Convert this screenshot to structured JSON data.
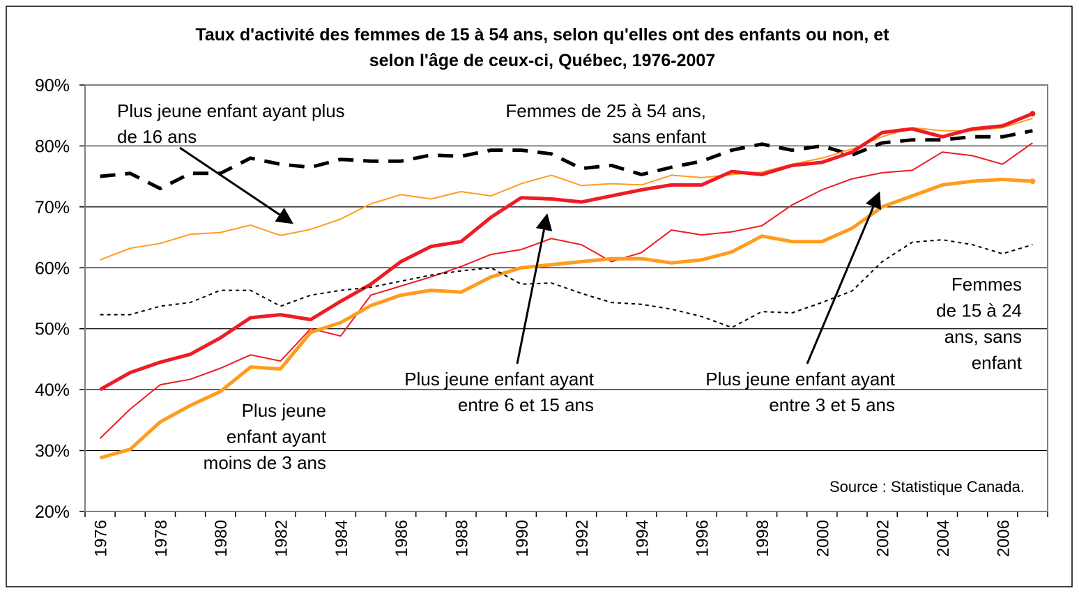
{
  "chart_data": {
    "type": "line",
    "title": [
      "Taux d'activité des femmes de 15 à 54 ans, selon qu'elles ont des enfants ou non, et",
      "selon l'âge de ceux-ci, Québec, 1976-2007"
    ],
    "categories": [
      "1976",
      null,
      "1978",
      null,
      "1980",
      null,
      "1982",
      null,
      "1984",
      null,
      "1986",
      null,
      "1988",
      null,
      "1990",
      null,
      "1992",
      null,
      "1994",
      null,
      "1996",
      null,
      "1998",
      null,
      "2000",
      null,
      "2002",
      null,
      "2004",
      null,
      "2006",
      null
    ],
    "ylim": [
      20,
      90
    ],
    "yticks": [
      {
        "value": 20,
        "label": "20%"
      },
      {
        "value": 30,
        "label": "30%"
      },
      {
        "value": 40,
        "label": "40%"
      },
      {
        "value": 50,
        "label": "50%"
      },
      {
        "value": 60,
        "label": "60%"
      },
      {
        "value": 70,
        "label": "70%"
      },
      {
        "value": 80,
        "label": "80%"
      },
      {
        "value": 90,
        "label": "90%"
      }
    ],
    "grid": true,
    "series": [
      {
        "color": "#000000",
        "line_width": "thick",
        "dash": "dashed",
        "values": [
          75,
          75.5,
          73,
          75.5,
          75.5,
          78,
          77,
          76.5,
          77.8,
          77.5,
          77.5,
          78.5,
          78.3,
          79.3,
          79.3,
          78.7,
          76.3,
          76.8,
          75.3,
          76.5,
          77.5,
          79.3,
          80.3,
          79.3,
          80,
          78.5,
          80.5,
          81,
          81,
          81.5,
          81.5,
          82.5
        ]
      },
      {
        "color": "#ff9c1e",
        "line_width": "thin",
        "dash": "solid",
        "values": [
          61.3,
          63.2,
          64,
          65.5,
          65.8,
          67,
          65.3,
          66.3,
          68,
          70.5,
          72,
          71.3,
          72.5,
          71.8,
          73.8,
          75.2,
          73.5,
          73.8,
          73.6,
          75.2,
          74.8,
          75.3,
          75.7,
          77,
          78,
          79.5,
          81.5,
          83,
          82.5,
          82.5,
          83,
          84.5
        ]
      },
      {
        "color": "#ee1c24",
        "line_width": "thick",
        "dash": "solid",
        "values": [
          40,
          42.8,
          44.5,
          45.8,
          48.5,
          51.8,
          52.3,
          51.5,
          54.5,
          57.3,
          61,
          63.5,
          64.3,
          68.3,
          71.5,
          71.3,
          70.8,
          71.8,
          72.8,
          73.6,
          73.6,
          75.8,
          75.3,
          76.8,
          77.3,
          79,
          82.2,
          82.8,
          81.5,
          82.8,
          83.3,
          85.3
        ]
      },
      {
        "color": "#ee1c24",
        "line_width": "thin",
        "dash": "solid",
        "values": [
          32,
          36.8,
          40.8,
          41.7,
          43.5,
          45.7,
          44.7,
          50,
          48.8,
          55.5,
          57,
          58.5,
          60.2,
          62.2,
          63,
          64.8,
          63.8,
          61,
          62.5,
          66.2,
          65.4,
          65.9,
          66.9,
          70.3,
          72.8,
          74.6,
          75.6,
          76,
          79,
          78.4,
          77,
          80.5
        ]
      },
      {
        "color": "#ff9c1e",
        "line_width": "thick",
        "dash": "solid",
        "values": [
          28.8,
          30.2,
          34.7,
          37.4,
          39.7,
          43.7,
          43.4,
          49.4,
          51,
          53.8,
          55.5,
          56.3,
          56,
          58.5,
          60,
          60.5,
          61,
          61.5,
          61.5,
          60.8,
          61.3,
          62.6,
          65.2,
          64.3,
          64.3,
          66.5,
          70,
          71.8,
          73.6,
          74.2,
          74.5,
          74.2
        ]
      },
      {
        "color": "#000000",
        "line_width": "thin",
        "dash": "dotted",
        "values": [
          52.3,
          52.3,
          53.7,
          54.3,
          56.3,
          56.3,
          53.7,
          55.5,
          56.3,
          56.8,
          57.8,
          58.8,
          59.5,
          60,
          57.3,
          57.5,
          55.8,
          54.3,
          54,
          53.2,
          52,
          50.2,
          52.8,
          52.6,
          54.3,
          56.2,
          61,
          64.2,
          64.6,
          63.8,
          62.3,
          63.8
        ]
      }
    ],
    "annotations": [
      {
        "lines": [
          "Plus jeune enfant ayant plus",
          "de 16 ans"
        ]
      },
      {
        "lines": [
          "Femmes de 25 à 54 ans,",
          "sans enfant"
        ]
      },
      {
        "lines": [
          "Femmes",
          "de 15 à 24",
          "ans, sans",
          "enfant"
        ]
      },
      {
        "lines": [
          "Plus jeune enfant ayant",
          "entre 6 et 15 ans"
        ]
      },
      {
        "lines": [
          "Plus jeune enfant ayant",
          "entre 3 et 5 ans"
        ]
      },
      {
        "lines": [
          "Plus jeune",
          "enfant ayant",
          "moins de 3 ans"
        ]
      },
      {
        "lines": [
          "Source : Statistique Canada."
        ]
      }
    ]
  }
}
